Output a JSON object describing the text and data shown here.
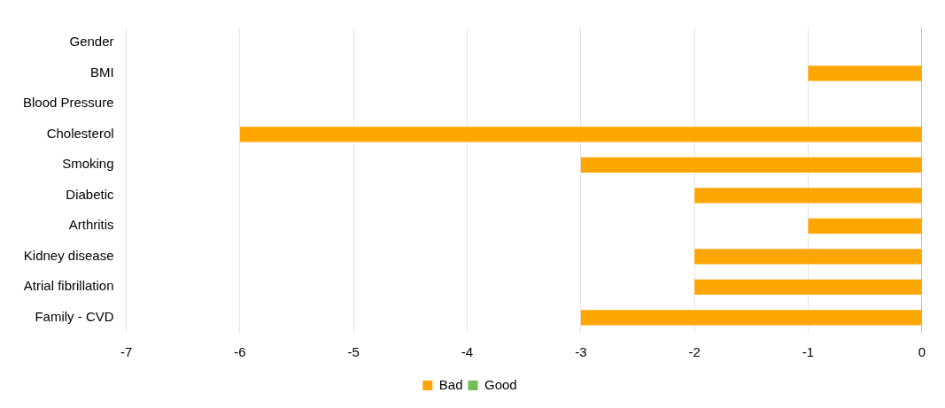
{
  "chart_data": {
    "type": "bar",
    "orientation": "horizontal",
    "stacked": true,
    "categories": [
      "Gender",
      "BMI",
      "Blood Pressure",
      "Cholesterol",
      "Smoking",
      "Diabetic",
      "Arthritis",
      "Kidney disease",
      "Atrial fibrillation",
      "Family - CVD"
    ],
    "series": [
      {
        "name": "Bad",
        "color": "#ffa500",
        "values": [
          0,
          -1,
          0,
          -6,
          -3,
          -2,
          -1,
          -2,
          -2,
          -3
        ]
      },
      {
        "name": "Good",
        "color": "#70bf52",
        "values": [
          0,
          0,
          0,
          0,
          0,
          0,
          0,
          0,
          0,
          0
        ]
      }
    ],
    "xlim": [
      -7,
      0
    ],
    "xticks": [
      -7,
      -6,
      -5,
      -4,
      -3,
      -2,
      -1,
      0
    ],
    "grid": "x",
    "legend": "bottom"
  }
}
